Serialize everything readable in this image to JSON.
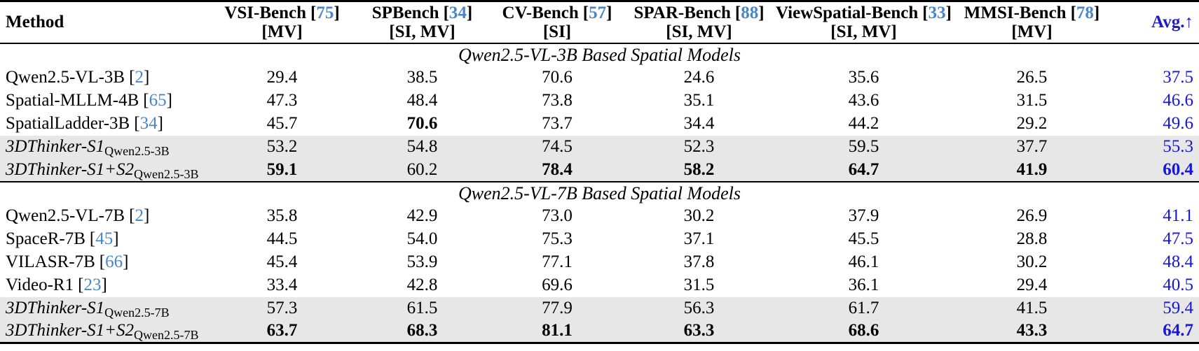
{
  "punct": {
    "open": "[",
    "close": "]"
  },
  "colors": {
    "citation_blue": "#4a86c5",
    "avg_value_blue": "#1616dd",
    "avg_header_blue": "#1c1ccd",
    "highlight_gray": "#e7e7e7",
    "rule_black": "#000000"
  },
  "header": {
    "method_label": "Method",
    "benches": [
      {
        "name": "VSI-Bench",
        "cite": "75",
        "tags": "[MV]"
      },
      {
        "name": "SPBench",
        "cite": "34",
        "tags": "[SI, MV]"
      },
      {
        "name": "CV-Bench",
        "cite": "57",
        "tags": "[SI]"
      },
      {
        "name": "SPAR-Bench",
        "cite": "88",
        "tags": "[SI, MV]"
      },
      {
        "name": "ViewSpatial-Bench",
        "cite": "33",
        "tags": "[SI, MV]"
      },
      {
        "name": "MMSI-Bench",
        "cite": "78",
        "tags": "[MV]"
      }
    ],
    "avg_label": "Avg.↑"
  },
  "sections": [
    {
      "title": "Qwen2.5-VL-3B Based Spatial Models",
      "rows": [
        {
          "method": "Qwen2.5-VL-3B",
          "cite": "2",
          "italic": false,
          "highlight": false,
          "values": [
            "29.4",
            "38.5",
            "70.6",
            "24.6",
            "35.6",
            "26.5"
          ],
          "avg": "37.5",
          "bold": [
            false,
            false,
            false,
            false,
            false,
            false
          ],
          "avg_bold": false
        },
        {
          "method": "Spatial-MLLM-4B",
          "cite": "65",
          "italic": false,
          "highlight": false,
          "values": [
            "47.3",
            "48.4",
            "73.8",
            "35.1",
            "43.6",
            "31.5"
          ],
          "avg": "46.6",
          "bold": [
            false,
            false,
            false,
            false,
            false,
            false
          ],
          "avg_bold": false
        },
        {
          "method": "SpatialLadder-3B",
          "cite": "34",
          "italic": false,
          "highlight": false,
          "values": [
            "45.7",
            "70.6",
            "73.7",
            "34.4",
            "44.2",
            "29.2"
          ],
          "avg": "49.6",
          "bold": [
            false,
            true,
            false,
            false,
            false,
            false
          ],
          "avg_bold": false
        },
        {
          "method": "3DThinker-S1",
          "subscript": "Qwen2.5-3B",
          "italic": true,
          "highlight": true,
          "values": [
            "53.2",
            "54.8",
            "74.5",
            "52.3",
            "59.5",
            "37.7"
          ],
          "avg": "55.3",
          "bold": [
            false,
            false,
            false,
            false,
            false,
            false
          ],
          "avg_bold": false
        },
        {
          "method": "3DThinker-S1+S2",
          "subscript": "Qwen2.5-3B",
          "italic": true,
          "highlight": true,
          "values": [
            "59.1",
            "60.2",
            "78.4",
            "58.2",
            "64.7",
            "41.9"
          ],
          "avg": "60.4",
          "bold": [
            true,
            false,
            true,
            true,
            true,
            true
          ],
          "avg_bold": true
        }
      ]
    },
    {
      "title": "Qwen2.5-VL-7B Based Spatial Models",
      "rows": [
        {
          "method": "Qwen2.5-VL-7B",
          "cite": "2",
          "italic": false,
          "highlight": false,
          "values": [
            "35.8",
            "42.9",
            "73.0",
            "30.2",
            "37.9",
            "26.9"
          ],
          "avg": "41.1",
          "bold": [
            false,
            false,
            false,
            false,
            false,
            false
          ],
          "avg_bold": false
        },
        {
          "method": "SpaceR-7B",
          "cite": "45",
          "italic": false,
          "highlight": false,
          "values": [
            "44.5",
            "54.0",
            "75.3",
            "37.1",
            "45.5",
            "28.8"
          ],
          "avg": "47.5",
          "bold": [
            false,
            false,
            false,
            false,
            false,
            false
          ],
          "avg_bold": false
        },
        {
          "method": "VILASR-7B",
          "cite": "66",
          "italic": false,
          "highlight": false,
          "values": [
            "45.4",
            "53.9",
            "77.1",
            "37.8",
            "46.1",
            "30.2"
          ],
          "avg": "48.4",
          "bold": [
            false,
            false,
            false,
            false,
            false,
            false
          ],
          "avg_bold": false
        },
        {
          "method": "Video-R1",
          "cite": "23",
          "italic": false,
          "highlight": false,
          "values": [
            "33.4",
            "42.8",
            "69.6",
            "31.5",
            "36.1",
            "29.4"
          ],
          "avg": "40.5",
          "bold": [
            false,
            false,
            false,
            false,
            false,
            false
          ],
          "avg_bold": false
        },
        {
          "method": "3DThinker-S1",
          "subscript": "Qwen2.5-7B",
          "italic": true,
          "highlight": true,
          "values": [
            "57.3",
            "61.5",
            "77.9",
            "56.3",
            "61.7",
            "41.5"
          ],
          "avg": "59.4",
          "bold": [
            false,
            false,
            false,
            false,
            false,
            false
          ],
          "avg_bold": false
        },
        {
          "method": "3DThinker-S1+S2",
          "subscript": "Qwen2.5-7B",
          "italic": true,
          "highlight": true,
          "values": [
            "63.7",
            "68.3",
            "81.1",
            "63.3",
            "68.6",
            "43.3"
          ],
          "avg": "64.7",
          "bold": [
            true,
            true,
            true,
            true,
            true,
            true
          ],
          "avg_bold": true
        }
      ]
    }
  ]
}
